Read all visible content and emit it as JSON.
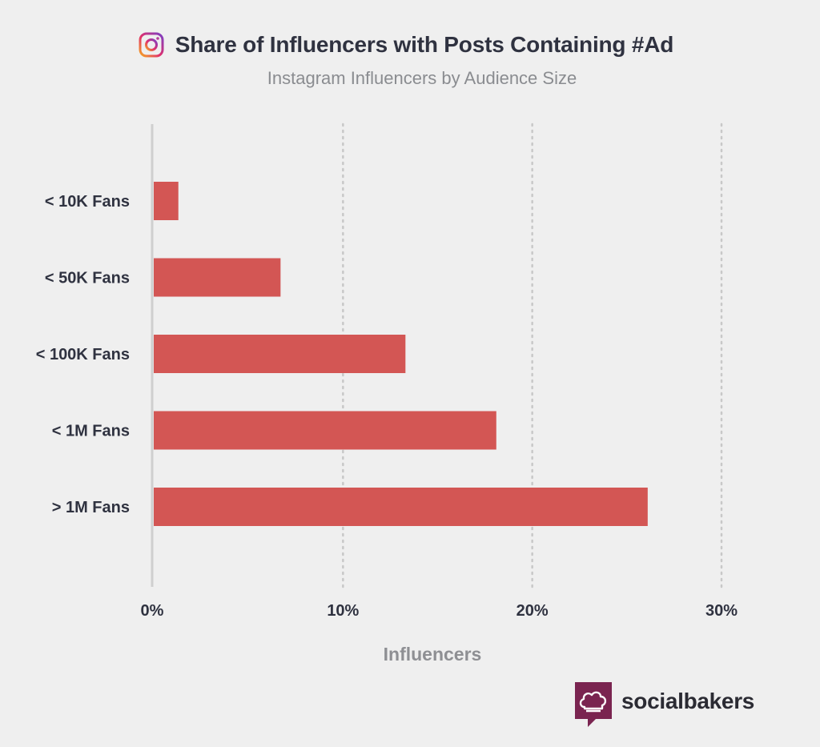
{
  "header": {
    "title": "Share of Influencers with Posts Containing #Ad",
    "subtitle": "Instagram Influencers by Audience Size"
  },
  "brand": {
    "name": "socialbakers",
    "logo_icon": "chef-hat-icon"
  },
  "colors": {
    "bar": "#d35654",
    "grid": "#c8c8c8",
    "axis": "#cfcfcf",
    "background": "#efefef"
  },
  "chart_data": {
    "type": "bar",
    "orientation": "horizontal",
    "title": "Share of Influencers with Posts Containing #Ad",
    "subtitle": "Instagram Influencers by Audience Size",
    "xlabel": "Influencers",
    "ylabel": "",
    "categories": [
      "< 10K Fans",
      "< 50K Fans",
      "< 100K Fans",
      "< 1M Fans",
      "> 1M Fans"
    ],
    "values": [
      1.3,
      6.7,
      13.3,
      18.1,
      26.1
    ],
    "unit": "%",
    "xlim": [
      0,
      30
    ],
    "x_ticks": [
      0,
      10,
      20,
      30
    ],
    "x_tick_labels": [
      "0%",
      "10%",
      "20%",
      "30%"
    ],
    "grid": "vertical dotted",
    "legend": "none"
  }
}
